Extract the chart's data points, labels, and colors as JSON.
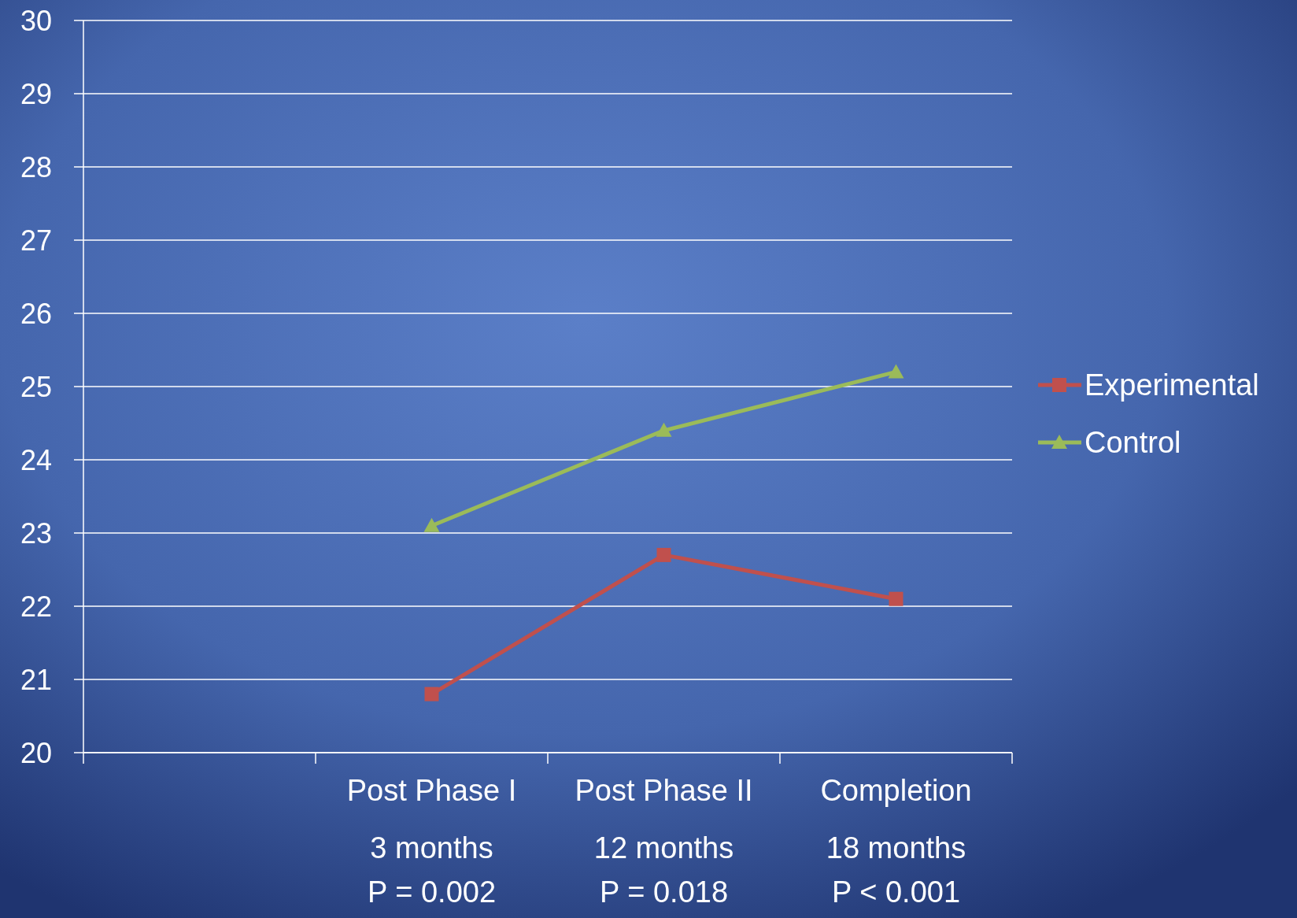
{
  "chart_data": {
    "type": "line",
    "categories": [
      null,
      "Post Phase I\n3 months\nP = 0.002",
      "Post Phase II\n12 months\nP = 0.018",
      "Completion\n18 months\nP < 0.001"
    ],
    "series": [
      {
        "name": "Experimental",
        "color": "#c0504d",
        "marker": "square",
        "values": [
          null,
          20.8,
          22.7,
          22.1
        ]
      },
      {
        "name": "Control",
        "color": "#9bbb59",
        "marker": "triangle",
        "values": [
          null,
          23.1,
          24.4,
          25.2
        ]
      }
    ],
    "ylim": [
      20,
      30
    ],
    "yticks": [
      20,
      21,
      22,
      23,
      24,
      25,
      26,
      27,
      28,
      29,
      30
    ],
    "grid": "y",
    "legend": "right"
  }
}
